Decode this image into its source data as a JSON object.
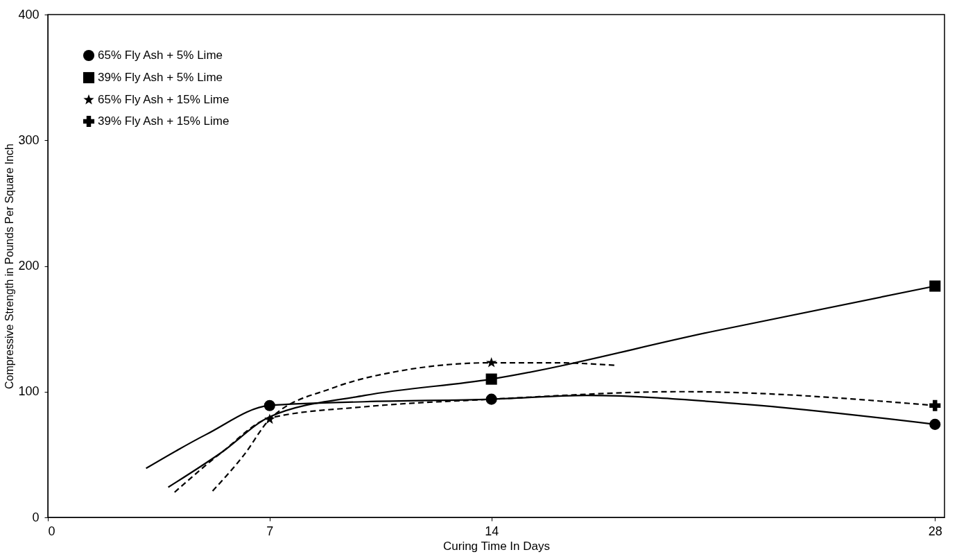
{
  "chart_data": {
    "type": "line",
    "xlabel": "Curing Time In Days",
    "ylabel": "Compressive Strength in Pounds Per Square Inch",
    "xlim": [
      0,
      28.3
    ],
    "xticks": [
      0,
      7,
      14,
      28
    ],
    "ylim": [
      0,
      400
    ],
    "yticks": [
      0,
      100,
      200,
      300,
      400
    ],
    "grid": false,
    "legend": "top left",
    "series": [
      {
        "color": "#000000",
        "line_style": "solid",
        "marker": "none",
        "x": [
          3.1,
          5,
          7,
          10,
          14,
          17,
          22,
          28
        ],
        "values": [
          39,
          66,
          89,
          92,
          94,
          97,
          90,
          74
        ]
      },
      {
        "color": "#000000",
        "line_style": "solid",
        "marker": "none",
        "x": [
          3.8,
          5.5,
          7,
          10,
          14,
          21,
          28
        ],
        "values": [
          24,
          52,
          80,
          97,
          110,
          148,
          184
        ]
      },
      {
        "color": "#000000",
        "line_style": "dashed",
        "marker": "none",
        "x": [
          5.2,
          6.2,
          7,
          9,
          11,
          14,
          16,
          17.9
        ],
        "values": [
          21,
          50,
          78,
          103,
          116,
          123,
          123,
          121
        ]
      },
      {
        "color": "#000000",
        "line_style": "dashed",
        "marker": "none",
        "x": [
          4,
          5.5,
          7,
          10,
          14,
          20,
          28
        ],
        "values": [
          20,
          52,
          79,
          88,
          94,
          100,
          89
        ]
      },
      {
        "type": "scatter",
        "name": "65% Fly Ash + 5% Lime",
        "color": "#000000",
        "marker": "circle",
        "x": [
          7,
          14,
          28
        ],
        "values": [
          89,
          94,
          74
        ]
      },
      {
        "type": "scatter",
        "name": "39% Fly Ash + 5% Lime",
        "color": "#000000",
        "marker": "square",
        "x": [
          14,
          28
        ],
        "values": [
          110,
          184
        ]
      },
      {
        "type": "scatter",
        "name": "65% Fly Ash + 15% Lime",
        "color": "#000000",
        "marker": "star",
        "x": [
          7,
          14
        ],
        "values": [
          78,
          123
        ]
      },
      {
        "type": "scatter",
        "name": "39% Fly Ash + 15% Lime",
        "color": "#000000",
        "marker": "cross",
        "x": [
          28
        ],
        "values": [
          89
        ]
      }
    ]
  }
}
